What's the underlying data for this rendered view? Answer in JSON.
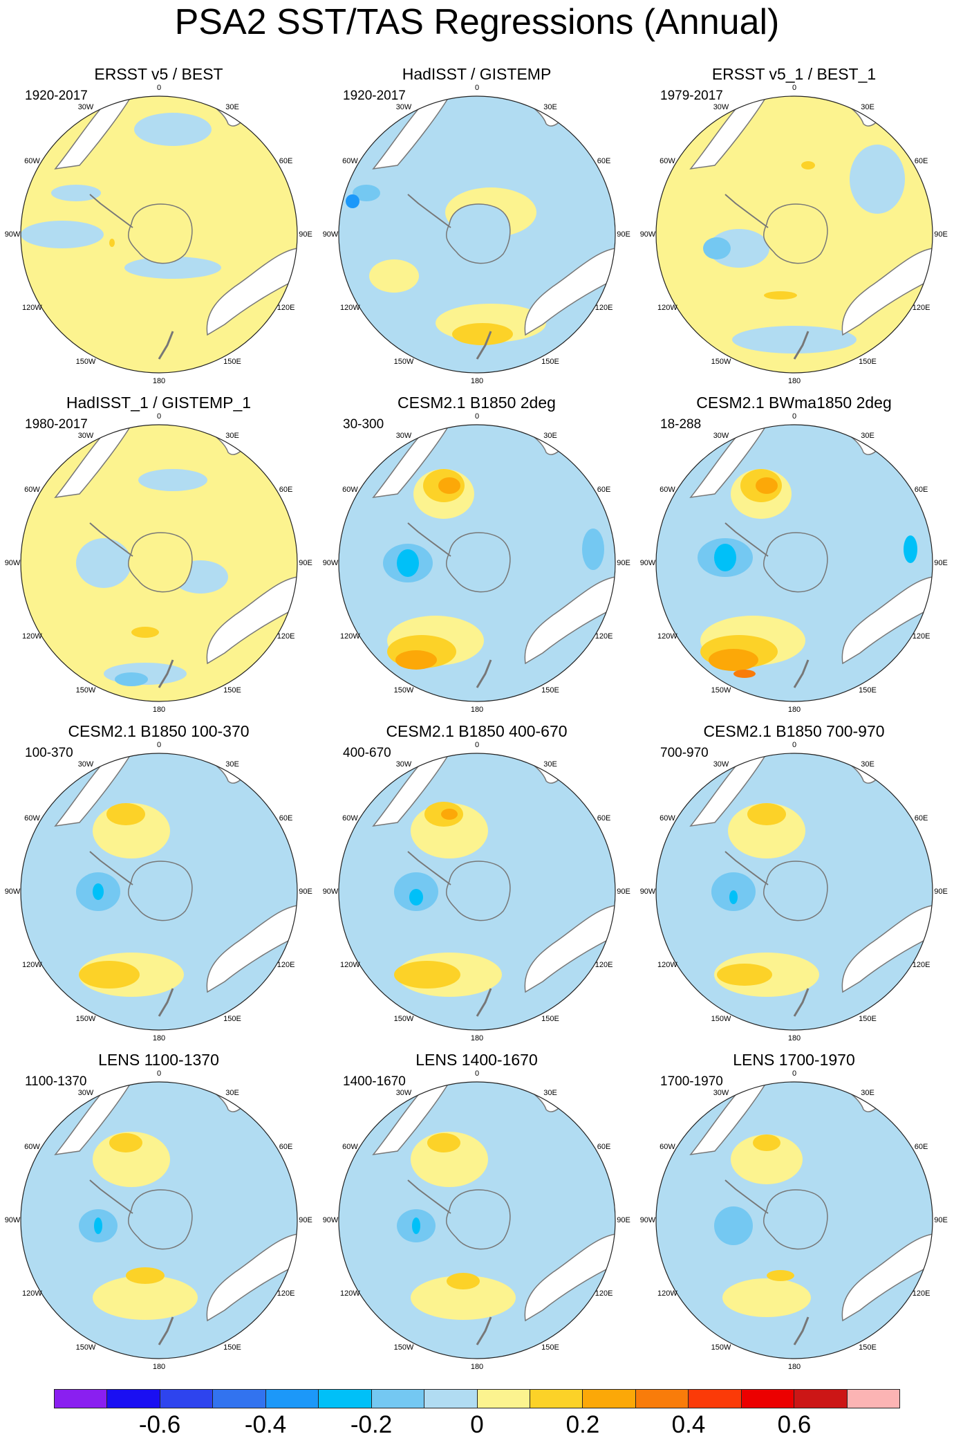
{
  "title": "PSA2 SST/TAS Regressions (Annual)",
  "colors": {
    "land": "#ffffff",
    "coast": "#777777",
    "outline": "#222222",
    "levels": [
      "#8a1ff0",
      "#1a0ff2",
      "#2e44ee",
      "#3273ef",
      "#1c98f9",
      "#00c0f8",
      "#74c8f2",
      "#b1dcf2",
      "#fcf38f",
      "#fcd228",
      "#fca808",
      "#f97c0a",
      "#fb3a08",
      "#ec0000",
      "#cc1616",
      "#fcb4b4"
    ]
  },
  "map_labels": {
    "top": "0",
    "bottom": "180",
    "nw30": "30W",
    "ne30": "30E",
    "w60": "60W",
    "e60": "60E",
    "w90": "90W",
    "e90": "90E",
    "w120": "120W",
    "e120": "120E",
    "w150": "150W",
    "e150": "150E"
  },
  "panels": [
    {
      "title": "ERSST v5 / BEST",
      "years": "1920-2017",
      "base": "yellow",
      "blobs": [
        [
          "#b1dcf2",
          0.55,
          0.12,
          0.28,
          0.12
        ],
        [
          "#b1dcf2",
          0.15,
          0.5,
          0.3,
          0.1
        ],
        [
          "#b1dcf2",
          0.55,
          0.62,
          0.35,
          0.08
        ],
        [
          "#b1dcf2",
          0.2,
          0.35,
          0.18,
          0.06
        ],
        [
          "#fcd228",
          0.33,
          0.53,
          0.02,
          0.03
        ]
      ]
    },
    {
      "title": "HadISST / GISTEMP",
      "years": "1920-2017",
      "base": "blue",
      "blobs": [
        [
          "#fcf38f",
          0.55,
          0.42,
          0.33,
          0.18
        ],
        [
          "#fcf38f",
          0.55,
          0.82,
          0.4,
          0.14
        ],
        [
          "#fcf38f",
          0.2,
          0.65,
          0.18,
          0.12
        ],
        [
          "#fcd228",
          0.52,
          0.86,
          0.22,
          0.08
        ],
        [
          "#74c8f2",
          0.1,
          0.35,
          0.1,
          0.06
        ],
        [
          "#1c98f9",
          0.05,
          0.38,
          0.05,
          0.05
        ]
      ]
    },
    {
      "title": "ERSST v5_1 / BEST_1",
      "years": "1979-2017",
      "base": "yellow",
      "blobs": [
        [
          "#b1dcf2",
          0.8,
          0.3,
          0.2,
          0.25
        ],
        [
          "#b1dcf2",
          0.3,
          0.55,
          0.22,
          0.14
        ],
        [
          "#74c8f2",
          0.22,
          0.55,
          0.1,
          0.08
        ],
        [
          "#b1dcf2",
          0.5,
          0.88,
          0.45,
          0.1
        ],
        [
          "#fcd228",
          0.45,
          0.72,
          0.12,
          0.03
        ],
        [
          "#fcd228",
          0.55,
          0.25,
          0.05,
          0.03
        ]
      ]
    },
    {
      "title": "HadISST_1 / GISTEMP_1",
      "years": "1980-2017",
      "base": "yellow",
      "blobs": [
        [
          "#b1dcf2",
          0.3,
          0.5,
          0.2,
          0.18
        ],
        [
          "#b1dcf2",
          0.65,
          0.55,
          0.2,
          0.12
        ],
        [
          "#b1dcf2",
          0.55,
          0.2,
          0.25,
          0.08
        ],
        [
          "#b1dcf2",
          0.45,
          0.9,
          0.3,
          0.08
        ],
        [
          "#74c8f2",
          0.4,
          0.92,
          0.12,
          0.05
        ],
        [
          "#fcd228",
          0.45,
          0.75,
          0.1,
          0.04
        ]
      ]
    },
    {
      "title": "CESM2.1 B1850 2deg",
      "years": "30-300",
      "base": "blue",
      "blobs": [
        [
          "#fcf38f",
          0.38,
          0.25,
          0.22,
          0.18
        ],
        [
          "#fcd228",
          0.38,
          0.22,
          0.15,
          0.12
        ],
        [
          "#fca808",
          0.4,
          0.22,
          0.08,
          0.06
        ],
        [
          "#fcf38f",
          0.35,
          0.78,
          0.35,
          0.18
        ],
        [
          "#fcd228",
          0.3,
          0.82,
          0.25,
          0.12
        ],
        [
          "#fca808",
          0.28,
          0.85,
          0.15,
          0.07
        ],
        [
          "#74c8f2",
          0.25,
          0.5,
          0.18,
          0.14
        ],
        [
          "#00c0f8",
          0.25,
          0.5,
          0.08,
          0.1
        ],
        [
          "#74c8f2",
          0.92,
          0.45,
          0.08,
          0.15
        ]
      ]
    },
    {
      "title": "CESM2.1 BWma1850 2deg",
      "years": "18-288",
      "base": "blue",
      "blobs": [
        [
          "#fcf38f",
          0.38,
          0.25,
          0.22,
          0.18
        ],
        [
          "#fcd228",
          0.38,
          0.22,
          0.15,
          0.12
        ],
        [
          "#fca808",
          0.4,
          0.22,
          0.08,
          0.06
        ],
        [
          "#fcf38f",
          0.35,
          0.78,
          0.38,
          0.18
        ],
        [
          "#fcd228",
          0.3,
          0.82,
          0.28,
          0.12
        ],
        [
          "#fca808",
          0.28,
          0.85,
          0.18,
          0.08
        ],
        [
          "#f97c0a",
          0.32,
          0.9,
          0.08,
          0.03
        ],
        [
          "#74c8f2",
          0.25,
          0.48,
          0.2,
          0.14
        ],
        [
          "#00c0f8",
          0.25,
          0.48,
          0.08,
          0.1
        ],
        [
          "#00c0f8",
          0.92,
          0.45,
          0.05,
          0.1
        ]
      ]
    },
    {
      "title": "CESM2.1 B1850 100-370",
      "years": "100-370",
      "base": "blue",
      "blobs": [
        [
          "#fcf38f",
          0.4,
          0.28,
          0.28,
          0.2
        ],
        [
          "#fcd228",
          0.38,
          0.22,
          0.14,
          0.08
        ],
        [
          "#fcf38f",
          0.4,
          0.8,
          0.38,
          0.16
        ],
        [
          "#fcd228",
          0.32,
          0.8,
          0.22,
          0.1
        ],
        [
          "#74c8f2",
          0.28,
          0.5,
          0.16,
          0.14
        ],
        [
          "#00c0f8",
          0.28,
          0.5,
          0.04,
          0.06
        ]
      ]
    },
    {
      "title": "CESM2.1 B1850 400-670",
      "years": "400-670",
      "base": "blue",
      "blobs": [
        [
          "#fcf38f",
          0.4,
          0.28,
          0.28,
          0.2
        ],
        [
          "#fcd228",
          0.38,
          0.22,
          0.14,
          0.09
        ],
        [
          "#fca808",
          0.4,
          0.22,
          0.06,
          0.04
        ],
        [
          "#fcf38f",
          0.4,
          0.8,
          0.38,
          0.16
        ],
        [
          "#fcd228",
          0.32,
          0.8,
          0.24,
          0.1
        ],
        [
          "#74c8f2",
          0.28,
          0.5,
          0.16,
          0.14
        ],
        [
          "#00c0f8",
          0.28,
          0.52,
          0.05,
          0.06
        ]
      ]
    },
    {
      "title": "CESM2.1 B1850 700-970",
      "years": "700-970",
      "base": "blue",
      "blobs": [
        [
          "#fcf38f",
          0.4,
          0.28,
          0.28,
          0.2
        ],
        [
          "#fcd228",
          0.4,
          0.22,
          0.14,
          0.08
        ],
        [
          "#fcf38f",
          0.4,
          0.8,
          0.38,
          0.16
        ],
        [
          "#fcd228",
          0.32,
          0.8,
          0.2,
          0.08
        ],
        [
          "#74c8f2",
          0.28,
          0.5,
          0.16,
          0.14
        ],
        [
          "#00c0f8",
          0.28,
          0.52,
          0.03,
          0.05
        ]
      ]
    },
    {
      "title": "LENS 1100-1370",
      "years": "1100-1370",
      "base": "blue",
      "blobs": [
        [
          "#fcf38f",
          0.4,
          0.28,
          0.28,
          0.2
        ],
        [
          "#fcd228",
          0.38,
          0.22,
          0.12,
          0.07
        ],
        [
          "#fcf38f",
          0.45,
          0.78,
          0.38,
          0.16
        ],
        [
          "#fcd228",
          0.45,
          0.7,
          0.14,
          0.06
        ],
        [
          "#74c8f2",
          0.28,
          0.52,
          0.14,
          0.12
        ],
        [
          "#00c0f8",
          0.28,
          0.52,
          0.03,
          0.06
        ]
      ]
    },
    {
      "title": "LENS 1400-1670",
      "years": "1400-1670",
      "base": "blue",
      "blobs": [
        [
          "#fcf38f",
          0.4,
          0.28,
          0.28,
          0.2
        ],
        [
          "#fcd228",
          0.38,
          0.22,
          0.12,
          0.07
        ],
        [
          "#fcf38f",
          0.45,
          0.78,
          0.38,
          0.16
        ],
        [
          "#fcd228",
          0.45,
          0.72,
          0.12,
          0.06
        ],
        [
          "#74c8f2",
          0.28,
          0.52,
          0.14,
          0.12
        ],
        [
          "#00c0f8",
          0.28,
          0.52,
          0.03,
          0.06
        ]
      ]
    },
    {
      "title": "LENS 1700-1970",
      "years": "1700-1970",
      "base": "blue",
      "blobs": [
        [
          "#fcf38f",
          0.4,
          0.28,
          0.26,
          0.18
        ],
        [
          "#fcd228",
          0.4,
          0.22,
          0.1,
          0.06
        ],
        [
          "#fcf38f",
          0.4,
          0.78,
          0.32,
          0.14
        ],
        [
          "#fcd228",
          0.45,
          0.7,
          0.1,
          0.04
        ],
        [
          "#74c8f2",
          0.28,
          0.52,
          0.14,
          0.14
        ]
      ]
    }
  ],
  "colorbar": {
    "ticks": [
      "-0.6",
      "-0.4",
      "-0.2",
      "0",
      "0.2",
      "0.4",
      "0.6"
    ],
    "tick_boundaries": [
      1,
      3,
      5,
      7,
      9,
      11,
      13
    ]
  }
}
